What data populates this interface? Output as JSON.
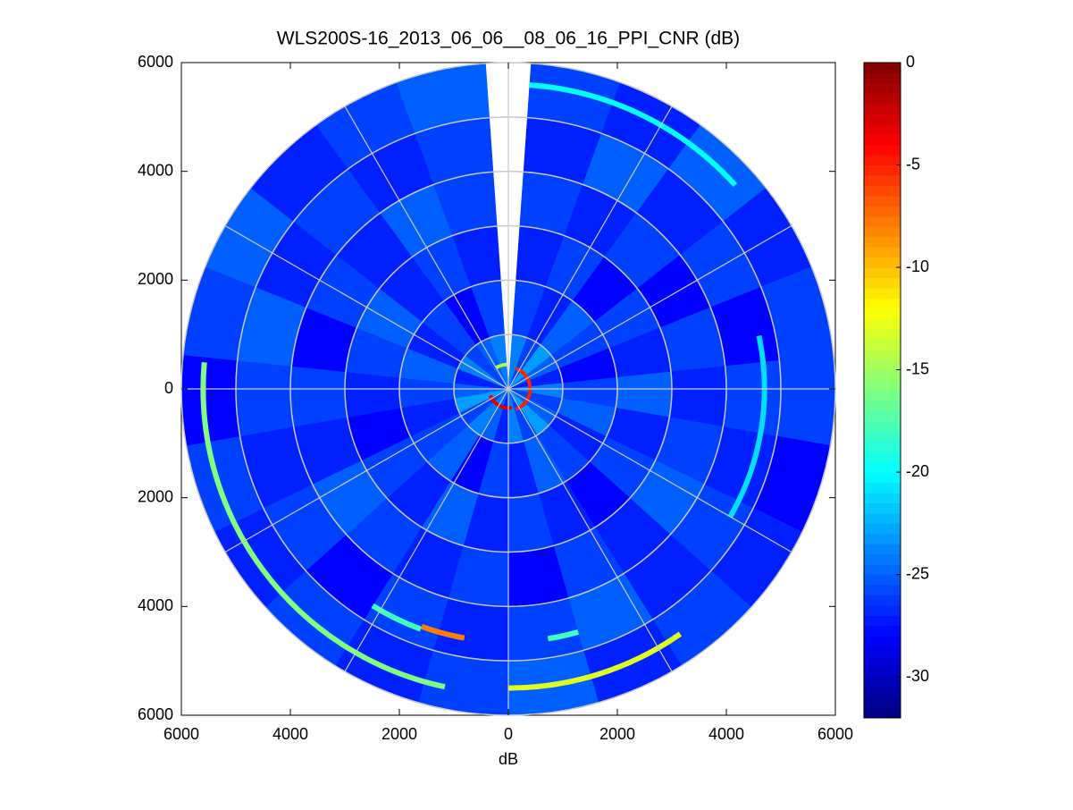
{
  "chart_data": {
    "type": "polar-heatmap",
    "title": "WLS200S-16_2013_06_06__08_06_16_PPI_CNR (dB)",
    "xlabel": "dB",
    "xlim": [
      -6000,
      6000
    ],
    "ylim": [
      -6000,
      6000
    ],
    "xticks": [
      {
        "value": -6000,
        "label": "6000"
      },
      {
        "value": -4000,
        "label": "4000"
      },
      {
        "value": -2000,
        "label": "2000"
      },
      0,
      2000,
      4000,
      6000
    ],
    "yticks": [
      {
        "value": -6000,
        "label": "6000"
      },
      {
        "value": -4000,
        "label": "4000"
      },
      {
        "value": -2000,
        "label": "2000"
      },
      0,
      2000,
      4000,
      6000
    ],
    "range_edges": [
      0,
      1000,
      2000,
      3000,
      4000,
      5000,
      6000
    ],
    "azimuth_edges": [
      4,
      20,
      36,
      52,
      68,
      84,
      100,
      116,
      132,
      148,
      164,
      180,
      196,
      212,
      228,
      244,
      260,
      276,
      292,
      308,
      324,
      340,
      356
    ],
    "values": [
      [
        -24,
        -26,
        -23,
        -25,
        -27,
        -24,
        -26,
        -25,
        -23,
        -26,
        -24,
        -27,
        -25,
        -24,
        -26,
        -23,
        -25,
        -27,
        -24,
        -26,
        -25,
        -24
      ],
      [
        -26,
        -27,
        -25,
        -26,
        -28,
        -26,
        -25,
        -27,
        -26,
        -25,
        -27,
        -26,
        -28,
        -25,
        -26,
        -27,
        -26,
        -25,
        -27,
        -26,
        -28,
        -26
      ],
      [
        -27,
        -26,
        -28,
        -26,
        -27,
        -25,
        -27,
        -26,
        -28,
        -27,
        -26,
        -27,
        -25,
        -27,
        -26,
        -28,
        -27,
        -26,
        -25,
        -27,
        -26,
        -27
      ],
      [
        -26,
        -27,
        -26,
        -28,
        -26,
        -27,
        -26,
        -25,
        -27,
        -26,
        -28,
        -26,
        -27,
        -26,
        -25,
        -27,
        -26,
        -28,
        -26,
        -27,
        -25,
        -26
      ],
      [
        -27,
        -25,
        -27,
        -26,
        -28,
        -26,
        -27,
        -26,
        -27,
        -25,
        -26,
        -27,
        -26,
        -28,
        -26,
        -27,
        -26,
        -25,
        -27,
        -26,
        -27,
        -26
      ],
      [
        -26,
        -27,
        -25,
        -27,
        -26,
        -26,
        -28,
        -27,
        -26,
        -27,
        -25,
        -26,
        -27,
        -26,
        -27,
        -26,
        -28,
        -26,
        -25,
        -27,
        -26,
        -25
      ]
    ],
    "arcs": [
      {
        "range": 5500,
        "azimuth": [
          145,
          180
        ],
        "value": -13
      },
      {
        "range": 5600,
        "azimuth": [
          192,
          275
        ],
        "value": -16
      },
      {
        "range": 5600,
        "azimuth": [
          4,
          48
        ],
        "value": -20
      },
      {
        "range": 4700,
        "azimuth": [
          78,
          120
        ],
        "value": -21
      },
      {
        "range": 4650,
        "azimuth": [
          190,
          200
        ],
        "value": -8
      },
      {
        "range": 4700,
        "azimuth": [
          200,
          212
        ],
        "value": -18
      },
      {
        "range": 4650,
        "azimuth": [
          164,
          171
        ],
        "value": -18
      },
      {
        "range": 400,
        "azimuth": [
          20,
          160
        ],
        "value": -5
      },
      {
        "range": 350,
        "azimuth": [
          170,
          250
        ],
        "value": -3
      },
      {
        "range": 450,
        "azimuth": [
          330,
          356
        ],
        "value": -14
      }
    ],
    "rgrid": [
      1000,
      2000,
      3000,
      4000,
      5000,
      6000
    ],
    "agrid": [
      0,
      30,
      60,
      90,
      120,
      150,
      180,
      210,
      240,
      270,
      300,
      330
    ],
    "clim": [
      -32,
      0
    ],
    "colorbar_ticks": [
      0,
      -5,
      -10,
      -15,
      -20,
      -25,
      -30
    ]
  }
}
